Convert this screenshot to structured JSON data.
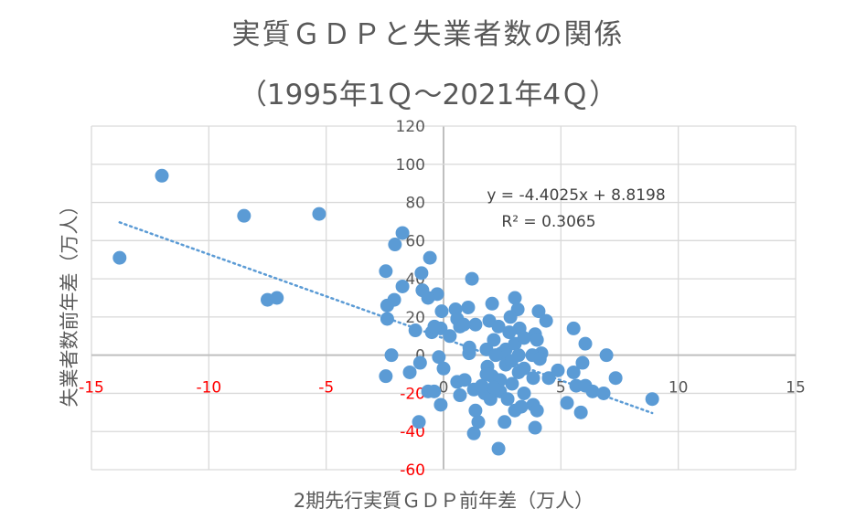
{
  "chart_data": {
    "type": "scatter",
    "title": "実質ＧＤＰと失業者数の関係",
    "subtitle": "（1995年1Ｑ～2021年4Ｑ）",
    "xlabel": "2期先行実質ＧＤＰ前年差（万人）",
    "ylabel": "失業者数前年差（万人）",
    "xlim": [
      -15,
      15
    ],
    "ylim": [
      -60,
      120
    ],
    "xticks": [
      "-15",
      "-10",
      "-5",
      "0",
      "5",
      "10",
      "15"
    ],
    "yticks": [
      "-60",
      "-40",
      "-20",
      "0",
      "20",
      "40",
      "60",
      "80",
      "100",
      "120"
    ],
    "grid": true,
    "negative_tick_color": "#ff0000",
    "point_color": "#5b9bd5",
    "trendline": {
      "type": "linear",
      "slope": -4.4025,
      "intercept": 8.8198,
      "equation": "y = -4.4025x + 8.8198",
      "r2": "R² = 0.3065",
      "style": "dotted"
    },
    "points": [
      [
        -13.8,
        51
      ],
      [
        -12.0,
        94
      ],
      [
        -8.5,
        73
      ],
      [
        -5.3,
        74
      ],
      [
        -7.5,
        29
      ],
      [
        -7.1,
        30
      ],
      [
        -1.75,
        64
      ],
      [
        -2.07,
        58
      ],
      [
        -0.58,
        51
      ],
      [
        -2.46,
        44
      ],
      [
        -0.94,
        43
      ],
      [
        -1.75,
        36
      ],
      [
        1.21,
        40
      ],
      [
        -0.9,
        34
      ],
      [
        -0.27,
        32
      ],
      [
        -0.66,
        30
      ],
      [
        -2.1,
        29
      ],
      [
        -2.4,
        26
      ],
      [
        -0.08,
        23
      ],
      [
        0.51,
        24
      ],
      [
        1.05,
        25
      ],
      [
        2.07,
        27
      ],
      [
        3.04,
        30
      ],
      [
        3.16,
        24
      ],
      [
        4.05,
        23
      ],
      [
        4.37,
        18
      ],
      [
        2.85,
        20
      ],
      [
        -2.4,
        19
      ],
      [
        -1.2,
        13
      ],
      [
        -0.5,
        12
      ],
      [
        -0.12,
        14
      ],
      [
        0.7,
        15
      ],
      [
        1.36,
        16
      ],
      [
        1.95,
        18
      ],
      [
        2.34,
        15
      ],
      [
        3.24,
        14
      ],
      [
        3.9,
        11
      ],
      [
        5.54,
        14
      ],
      [
        6.04,
        6
      ],
      [
        6.94,
        0
      ],
      [
        7.33,
        -12
      ],
      [
        8.89,
        -23
      ],
      [
        -2.22,
        0
      ],
      [
        -2.46,
        -11
      ],
      [
        -1.44,
        -9
      ],
      [
        -1.0,
        -4
      ],
      [
        -0.2,
        -1
      ],
      [
        0,
        -7
      ],
      [
        -0.66,
        -19
      ],
      [
        -0.12,
        -26
      ],
      [
        0.7,
        -21
      ],
      [
        0.58,
        -14
      ],
      [
        1.09,
        1
      ],
      [
        1.1,
        4
      ],
      [
        1.29,
        -18
      ],
      [
        1.36,
        -29
      ],
      [
        1.48,
        -35
      ],
      [
        1.29,
        -41
      ],
      [
        2.34,
        -49
      ],
      [
        2.6,
        -35
      ],
      [
        1.87,
        -6
      ],
      [
        2.07,
        -11
      ],
      [
        1.75,
        -20
      ],
      [
        2.0,
        -23
      ],
      [
        2.41,
        -19
      ],
      [
        2.73,
        -23
      ],
      [
        2.92,
        -15
      ],
      [
        3.04,
        -29
      ],
      [
        3.43,
        -20
      ],
      [
        3.82,
        -26
      ],
      [
        3.98,
        -29
      ],
      [
        3.9,
        -38
      ],
      [
        3.43,
        -7
      ],
      [
        3.82,
        -12
      ],
      [
        4.48,
        -12
      ],
      [
        4.87,
        -8
      ],
      [
        5.54,
        -9
      ],
      [
        5.92,
        -4
      ],
      [
        5.65,
        -16
      ],
      [
        6.04,
        -16
      ],
      [
        6.35,
        -19
      ],
      [
        6.82,
        -20
      ],
      [
        5.26,
        -25
      ],
      [
        5.85,
        -30
      ],
      [
        -1.05,
        -35
      ],
      [
        2.65,
        3
      ],
      [
        3.04,
        6
      ],
      [
        3.98,
        8
      ],
      [
        4.17,
        1
      ],
      [
        2.8,
        12
      ],
      [
        2.14,
        8
      ],
      [
        1.83,
        3
      ],
      [
        2.46,
        1
      ],
      [
        3.2,
        0
      ],
      [
        3.78,
        0
      ],
      [
        3.43,
        9
      ],
      [
        2.22,
        0
      ],
      [
        2.65,
        -5
      ],
      [
        3.2,
        -9
      ],
      [
        2.41,
        -13
      ],
      [
        2.14,
        -17
      ],
      [
        3.31,
        -27
      ],
      [
        -0.39,
        15
      ],
      [
        0.58,
        19
      ],
      [
        0.86,
        16
      ],
      [
        0.27,
        10
      ],
      [
        1.63,
        -16
      ],
      [
        1.83,
        -10
      ],
      [
        -0.4,
        -19
      ],
      [
        0.9,
        -13
      ],
      [
        2.9,
        -3
      ],
      [
        4.1,
        -2
      ]
    ]
  }
}
